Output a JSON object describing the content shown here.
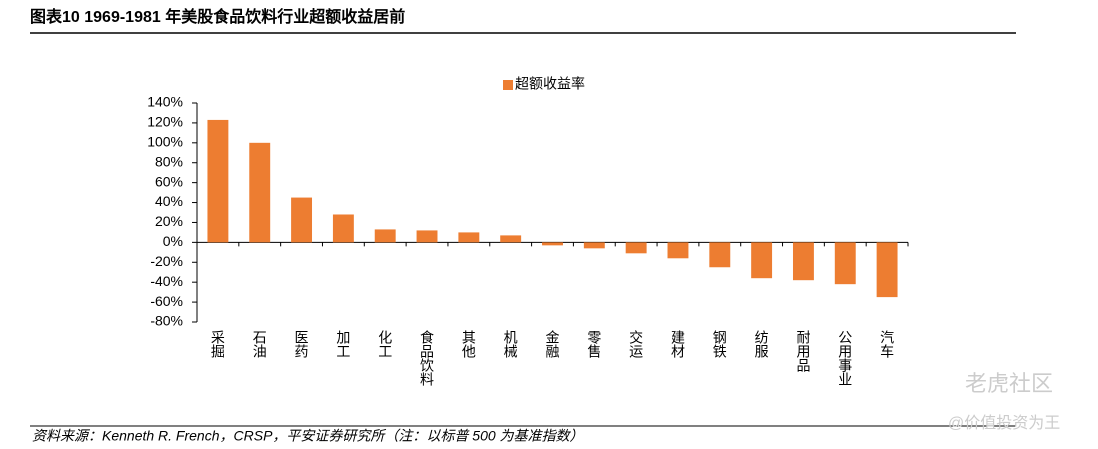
{
  "header": {
    "title": "图表10    1969-1981 年美股食品饮料行业超额收益居前"
  },
  "chart_data": {
    "type": "bar",
    "categories": [
      "采掘",
      "石油",
      "医药",
      "加工",
      "化工",
      "食品饮料",
      "其他",
      "机械",
      "金融",
      "零售",
      "交运",
      "建材",
      "钢铁",
      "纺服",
      "耐用品",
      "公用事业",
      "汽车"
    ],
    "series": [
      {
        "name": "超额收益率",
        "color": "#ed7d31",
        "values": [
          123,
          100,
          45,
          28,
          13,
          12,
          10,
          7,
          -3,
          -6,
          -11,
          -16,
          -25,
          -36,
          -38,
          -42,
          -55
        ]
      }
    ],
    "ylim": [
      -80,
      140
    ],
    "yticks": [
      {
        "value": -80,
        "label": "-80%"
      },
      {
        "value": -60,
        "label": "-60%"
      },
      {
        "value": -40,
        "label": "-40%"
      },
      {
        "value": -20,
        "label": "-20%"
      },
      {
        "value": 0,
        "label": "0%"
      },
      {
        "value": 20,
        "label": "20%"
      },
      {
        "value": 40,
        "label": "40%"
      },
      {
        "value": 60,
        "label": "60%"
      },
      {
        "value": 80,
        "label": "80%"
      },
      {
        "value": 100,
        "label": "100%"
      },
      {
        "value": 120,
        "label": "120%"
      },
      {
        "value": 140,
        "label": "140%"
      }
    ],
    "legend": "top"
  },
  "source": "资料来源：Kenneth R. French，CRSP，平安证券研究所（注：以标普 500 为基准指数）",
  "watermark": {
    "brand": "老虎社区",
    "handle": "@价值投资为王"
  }
}
